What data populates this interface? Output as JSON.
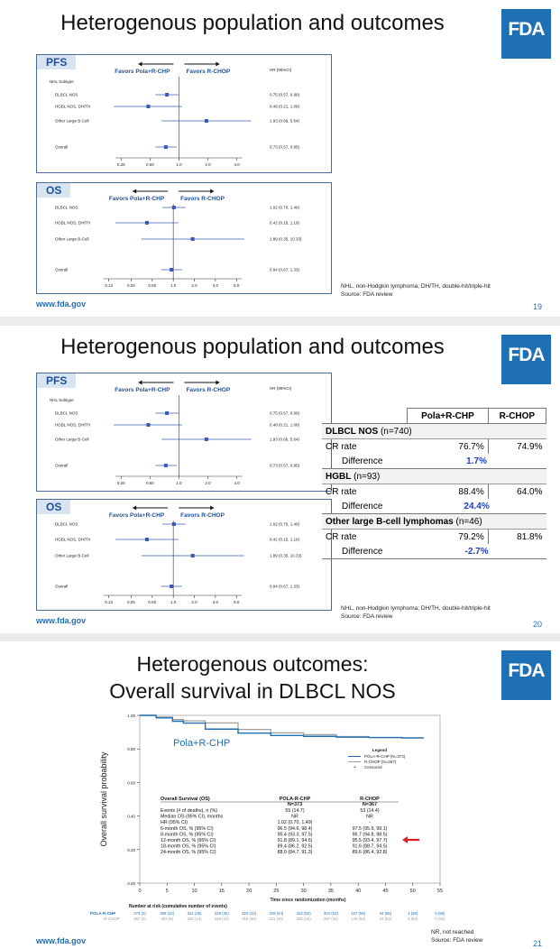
{
  "slide1": {
    "title": "Heterogenous population and outcomes",
    "logo": "FDA",
    "url": "www.fda.gov",
    "page": "19",
    "note": [
      "NHL, non-Hodgkin lymphoma; DH/TH, double-hit/triple-hit",
      "Source: FDA review"
    ]
  },
  "slide2": {
    "title": "Heterogenous population and outcomes",
    "logo": "FDA",
    "url": "www.fda.gov",
    "page": "20",
    "note": [
      "NHL, non-Hodgkin lymphoma; DH/TH, double-hit/triple-hit",
      "Source: FDA review"
    ],
    "table": {
      "headers": [
        "",
        "Pola+R-CHP",
        "R-CHOP"
      ],
      "groups": [
        {
          "name": "DLBCL NOS",
          "n": "(n=740)",
          "cr_label": "CR rate",
          "pola": "76.7%",
          "rchop": "74.9%",
          "diff_label": "Difference",
          "diff": "1.7%"
        },
        {
          "name": "HGBL",
          "n": "(n=93)",
          "cr_label": "CR rate",
          "pola": "88.4%",
          "rchop": "64.0%",
          "diff_label": "Difference",
          "diff": "24.4%"
        },
        {
          "name": "Other large B-cell lymphomas",
          "n": "(n=46)",
          "cr_label": "CR rate",
          "pola": "79.2%",
          "rchop": "81.8%",
          "diff_label": "Difference",
          "diff": "-2.7%"
        }
      ]
    }
  },
  "forest": {
    "pfs": {
      "label": "PFS",
      "favors_left": "Favors Pola+R-CHP",
      "favors_right": "Favors R-CHOP",
      "hr_header": "HR (95%CI)",
      "subtype_header": "NHL Subtype",
      "rows": [
        {
          "name": "DLBCL NOS",
          "hr": 0.75,
          "lo": 0.57,
          "hi": 0.99,
          "text": "0.75 (0.57, 0.99)"
        },
        {
          "name": "HGBL NOS, DH/TH",
          "hr": 0.48,
          "lo": 0.21,
          "hi": 1.08,
          "text": "0.48 (0.21, 1.08)"
        },
        {
          "name": "Other Large B-Cell",
          "hr": 1.93,
          "lo": 0.66,
          "hi": 5.64,
          "text": "1.93 (0.66, 5.64)"
        },
        {
          "name": "Overall",
          "hr": 0.73,
          "lo": 0.57,
          "hi": 0.95,
          "text": "0.73 (0.57, 0.95)"
        }
      ],
      "ticks": [
        "0.25",
        "0.50",
        "1.0",
        "2.0",
        "4.0"
      ]
    },
    "os": {
      "label": "OS",
      "favors_left": "Favors Pola+R-CHP",
      "favors_right": "Favors R-CHOP",
      "rows": [
        {
          "name": "DLBCL NOS",
          "hr": 1.02,
          "lo": 0.7,
          "hi": 1.49,
          "text": "1.02 (0.70, 1.49)"
        },
        {
          "name": "HGBL NOS, DH/TH",
          "hr": 0.42,
          "lo": 0.15,
          "hi": 1.19,
          "text": "0.42 (0.15, 1.19)"
        },
        {
          "name": "Other Large B-Cell",
          "hr": 1.89,
          "lo": 0.35,
          "hi": 10.33,
          "text": "1.89 (0.35, 10.33)"
        },
        {
          "name": "Overall",
          "hr": 0.94,
          "lo": 0.67,
          "hi": 1.33,
          "text": "0.94 (0.67, 1.33)"
        }
      ],
      "ticks": [
        "0.12",
        "0.25",
        "0.50",
        "1.0",
        "2.0",
        "4.0",
        "8.0"
      ]
    }
  },
  "slide3": {
    "title_line1": "Heterogenous outcomes:",
    "title_line2": "Overall survival in DLBCL NOS",
    "logo": "FDA",
    "url": "www.fda.gov",
    "page": "21",
    "note": [
      "NR, not reached",
      "Source: FDA review"
    ],
    "km": {
      "ylabel": "Overall survival probability",
      "xlabel": "Time since randomization (months)",
      "yticks": [
        "0.00",
        "0.20",
        "0.40",
        "0.60",
        "0.80",
        "1.00"
      ],
      "xticks": [
        "0",
        "5",
        "10",
        "15",
        "20",
        "25",
        "30",
        "35",
        "40",
        "45",
        "50",
        "55"
      ],
      "arm_label": "Pola+R-CHP",
      "legend_title": "Legend",
      "legend": [
        "POLA-R-CHP (N=373)",
        "R-CHOP (N=367)",
        "Censored"
      ],
      "colors": {
        "pola": "#1f6fb4",
        "rchop": "#a0a0a0",
        "arrow": "#e02020"
      },
      "table_title": "Overall Survival (OS)",
      "col1": [
        "POLA-R-CHP",
        "N=373"
      ],
      "col2": [
        "R-CHOP",
        "N=367"
      ],
      "rows": [
        [
          "Events (# of deaths), n (%)",
          "55 (14.7)",
          "53 (14.4)"
        ],
        [
          "Median OS (95% CI), months",
          "NR",
          "NR"
        ],
        [
          "HR (95% CI)",
          "1.02 (0.70, 1.49)",
          "-"
        ],
        [
          "6-month OS, % (95% CI)",
          "96.5 (94.6, 98.4)",
          "97.5 (95.9, 99.1)"
        ],
        [
          "8-month OS, % (95% CI)",
          "95.4 (93.3, 97.5)",
          "96.7 (94.8, 98.5)"
        ],
        [
          "12-month OS, % (95% CI)",
          "91.8 (89.1, 94.6)",
          "95.5 (93.4, 97.7)"
        ],
        [
          "18-month OS, % (95% CI)",
          "89.4 (86.2, 92.5)",
          "91.6 (88.7, 94.5)"
        ],
        [
          "24-month OS, % (95% CI)",
          "88.0 (84.7, 91.3)",
          "89.6 (86.4, 92.8)"
        ]
      ],
      "risk_title": "Number at risk (cumulative number of events)",
      "risk_pola_label": "POLA-R-CHP",
      "risk_rchop_label": "R-CHOP",
      "risk_pola": [
        "373 (0)",
        "359 (12)",
        "341 (25)",
        "329 (36)",
        "320 (43)",
        "318 (44)",
        "312 (50)",
        "304 (53)",
        "157 (55)",
        "44 (55)",
        "4 (55)",
        "0 (55)"
      ],
      "risk_rchop": [
        "367 (0)",
        "353 (6)",
        "343 (14)",
        "328 (24)",
        "318 (35)",
        "311 (40)",
        "305 (45)",
        "297 (46)",
        "146 (53)",
        "44 (53)",
        "4 (53)",
        "0 (53)"
      ]
    }
  }
}
